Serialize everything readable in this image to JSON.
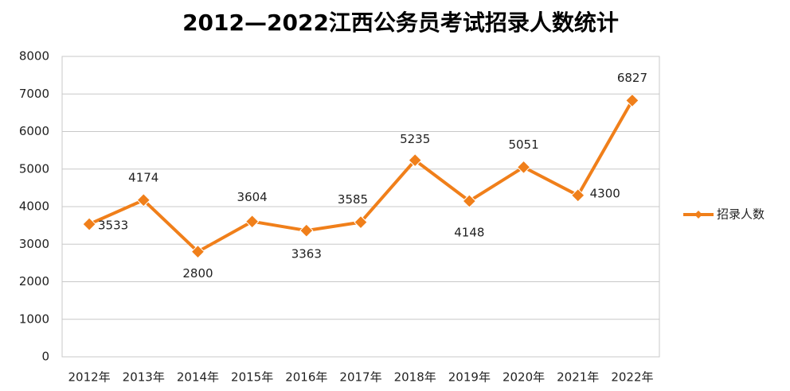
{
  "chart_data": {
    "type": "line",
    "title": "2012—2022江西公务员考试招录人数统计",
    "categories": [
      "2012年",
      "2013年",
      "2014年",
      "2015年",
      "2016年",
      "2017年",
      "2018年",
      "2019年",
      "2020年",
      "2021年",
      "2022年"
    ],
    "series": [
      {
        "name": "招录人数",
        "color": "#f07f1a",
        "values": [
          3533,
          4174,
          2800,
          3604,
          3363,
          3585,
          5235,
          4148,
          5051,
          4300,
          6827
        ]
      }
    ],
    "ylim": [
      0,
      8000
    ],
    "yticks": [
      0,
      1000,
      2000,
      3000,
      4000,
      5000,
      6000,
      7000,
      8000
    ],
    "grid": true,
    "legend": "right"
  }
}
